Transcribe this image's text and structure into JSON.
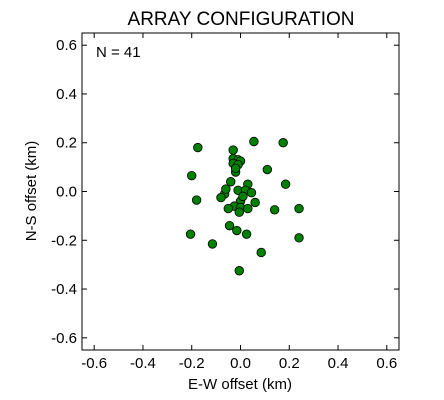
{
  "chart_data": {
    "type": "scatter",
    "title": "ARRAY CONFIGURATION",
    "xlabel": "E-W offset (km)",
    "ylabel": "N-S offset (km)",
    "xlim": [
      -0.65,
      0.65
    ],
    "ylim": [
      -0.65,
      0.65
    ],
    "xticks": [
      "-0.6",
      "-0.4",
      "-0.2",
      "0.0",
      "0.2",
      "0.4",
      "0.6"
    ],
    "yticks": [
      "-0.6",
      "-0.4",
      "-0.2",
      "0.0",
      "0.2",
      "0.4",
      "0.6"
    ],
    "tick_values": [
      -0.6,
      -0.4,
      -0.2,
      0.0,
      0.2,
      0.4,
      0.6
    ],
    "annotation": "N = 41",
    "grid": false,
    "marker_color": "#008000",
    "marker_edge_color": "#000000",
    "points": [
      [
        0.055,
        0.205
      ],
      [
        0.175,
        0.2
      ],
      [
        -0.175,
        0.18
      ],
      [
        -0.03,
        0.17
      ],
      [
        -0.03,
        0.135
      ],
      [
        -0.01,
        0.13
      ],
      [
        0.0,
        0.125
      ],
      [
        -0.03,
        0.115
      ],
      [
        -0.01,
        0.11
      ],
      [
        0.11,
        0.09
      ],
      [
        -0.02,
        0.08
      ],
      [
        -0.2,
        0.065
      ],
      [
        -0.04,
        0.04
      ],
      [
        0.03,
        0.03
      ],
      [
        0.185,
        0.03
      ],
      [
        -0.01,
        0.005
      ],
      [
        0.02,
        0.005
      ],
      [
        -0.065,
        -0.01
      ],
      [
        -0.08,
        -0.025
      ],
      [
        0.045,
        -0.005
      ],
      [
        -0.18,
        -0.035
      ],
      [
        0.0,
        -0.04
      ],
      [
        0.06,
        -0.045
      ],
      [
        -0.025,
        -0.06
      ],
      [
        -0.05,
        -0.07
      ],
      [
        0.0,
        -0.065
      ],
      [
        0.03,
        -0.07
      ],
      [
        0.14,
        -0.075
      ],
      [
        0.24,
        -0.07
      ],
      [
        -0.005,
        -0.085
      ],
      [
        -0.045,
        -0.14
      ],
      [
        -0.015,
        -0.16
      ],
      [
        0.025,
        -0.175
      ],
      [
        -0.205,
        -0.175
      ],
      [
        0.24,
        -0.19
      ],
      [
        -0.115,
        -0.215
      ],
      [
        0.085,
        -0.25
      ],
      [
        -0.005,
        -0.325
      ],
      [
        -0.02,
        0.095
      ],
      [
        0.01,
        -0.02
      ],
      [
        -0.06,
        0.01
      ]
    ]
  }
}
